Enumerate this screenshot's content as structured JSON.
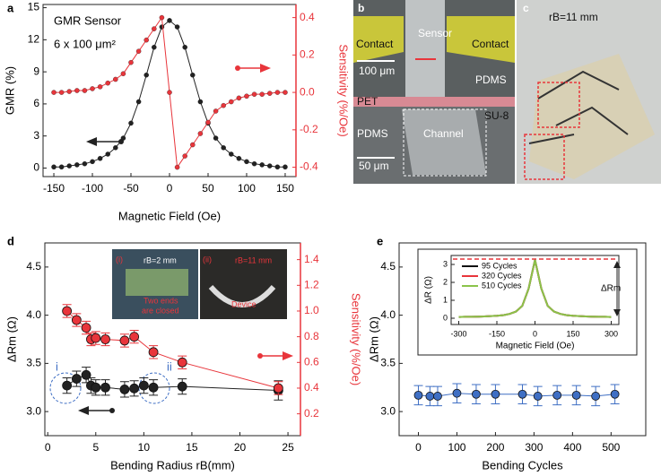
{
  "chart_data": [
    {
      "type": "scatter",
      "panel_label": "a",
      "xlabel": "Magnetic Field (Oe)",
      "ylabel": "GMR (%)",
      "y2label": "Sensitivity (%/Oe)",
      "x": [
        -150,
        -140,
        -130,
        -120,
        -110,
        -100,
        -90,
        -80,
        -70,
        -60,
        -50,
        -40,
        -30,
        -20,
        -10,
        0,
        10,
        20,
        30,
        40,
        50,
        60,
        70,
        80,
        90,
        100,
        110,
        120,
        130,
        140,
        150
      ],
      "series": [
        {
          "color": "#222222",
          "values": [
            0.1,
            0.1,
            0.2,
            0.3,
            0.4,
            0.6,
            0.9,
            1.3,
            1.9,
            2.8,
            4.2,
            6.2,
            8.7,
            11.3,
            13.2,
            13.8,
            13.2,
            11.3,
            8.7,
            6.2,
            4.2,
            2.8,
            1.9,
            1.3,
            0.9,
            0.6,
            0.4,
            0.3,
            0.2,
            0.1,
            0.1
          ]
        },
        {
          "color": "#e8353b",
          "axis": "y2",
          "values": [
            0,
            0,
            0.005,
            0.01,
            0.01,
            0.02,
            0.03,
            0.05,
            0.07,
            0.1,
            0.16,
            0.22,
            0.28,
            0.34,
            0.4,
            0,
            -0.4,
            -0.34,
            -0.28,
            -0.22,
            -0.16,
            -0.1,
            -0.07,
            -0.05,
            -0.03,
            -0.02,
            -0.01,
            -0.01,
            -0.005,
            0,
            0
          ]
        }
      ],
      "xlim": [
        -164,
        164
      ],
      "xticks": [
        -150,
        -100,
        -50,
        0,
        50,
        100,
        150
      ],
      "ylim": [
        -0.8,
        15.3
      ],
      "yticks": [
        0,
        3,
        6,
        9,
        12,
        15
      ],
      "y2lim": [
        -0.45,
        0.47
      ],
      "y2ticks": [
        -0.4,
        -0.2,
        {
          "value": 0,
          "label": "0.0"
        },
        0.2,
        0.4
      ],
      "annotations": [
        "GMR Sensor",
        "6 x 100 μm²"
      ]
    },
    {
      "type": "scatter",
      "panel_label": "d",
      "xlabel": "Bending Radius rB(mm)",
      "ylabel": "ΔRm (Ω)",
      "y2label": "Sensitivity (%/Oe)",
      "series": [
        {
          "color": "#222222",
          "x": [
            2,
            3,
            4,
            4.5,
            5,
            6,
            8,
            9,
            10,
            11,
            14,
            24
          ],
          "values": [
            3.27,
            3.34,
            3.38,
            3.27,
            3.25,
            3.25,
            3.23,
            3.24,
            3.27,
            3.25,
            3.26,
            3.22
          ],
          "errors": [
            0.08,
            0.08,
            0.08,
            0.08,
            0.08,
            0.08,
            0.08,
            0.08,
            0.08,
            0.08,
            0.08,
            0.1
          ]
        },
        {
          "color": "#e8353b",
          "axis": "y2",
          "x": [
            2,
            3,
            4,
            4.5,
            5,
            6,
            8,
            9,
            11,
            14,
            24
          ],
          "values": [
            1.0,
            0.93,
            0.87,
            0.78,
            0.79,
            0.78,
            0.77,
            0.8,
            0.68,
            0.6,
            0.4
          ],
          "errors": [
            0.05,
            0.05,
            0.05,
            0.05,
            0.05,
            0.05,
            0.05,
            0.05,
            0.05,
            0.05,
            0.05
          ]
        }
      ],
      "xlim": [
        -0.3,
        26.3
      ],
      "xticks": [
        0,
        5,
        10,
        15,
        20,
        25
      ],
      "ylim": [
        2.75,
        4.75
      ],
      "yticks": [
        {
          "value": 3,
          "label": "3.0"
        },
        3.5,
        {
          "value": 4,
          "label": "4.0"
        },
        4.5
      ],
      "y2lim": [
        0.03,
        1.53
      ],
      "y2ticks": [
        0.2,
        0.4,
        0.6,
        0.8,
        {
          "value": 1,
          "label": "1.0"
        },
        1.2,
        1.4
      ],
      "annotations": [
        "i",
        "ii",
        "(i)",
        "rB=2 mm",
        "Two ends",
        "are closed",
        "(ii)",
        "rB=11 mm",
        "Device"
      ]
    },
    {
      "type": "scatter",
      "panel_label": "e",
      "xlabel": "Bending Cycles",
      "ylabel": "ΔRm (Ω)",
      "series": [
        {
          "color": "#3f6fc4",
          "x": [
            0,
            30,
            50,
            100,
            150,
            200,
            270,
            310,
            360,
            410,
            460,
            510
          ],
          "values": [
            3.17,
            3.16,
            3.16,
            3.19,
            3.18,
            3.18,
            3.18,
            3.16,
            3.17,
            3.17,
            3.16,
            3.18
          ],
          "errors": [
            0.1,
            0.1,
            0.1,
            0.1,
            0.1,
            0.1,
            0.1,
            0.1,
            0.1,
            0.1,
            0.1,
            0.1
          ]
        }
      ],
      "xlim": [
        -50,
        590
      ],
      "xticks": [
        0,
        100,
        200,
        300,
        400,
        500
      ],
      "ylim": [
        2.75,
        4.75
      ],
      "yticks": [
        {
          "value": 3,
          "label": "3.0"
        },
        3.5,
        {
          "value": 4,
          "label": "4.0"
        },
        4.5
      ]
    },
    {
      "type": "line",
      "xlabel": "Magnetic Field (Oe)",
      "ylabel": "ΔR (Ω)",
      "x": [
        -300,
        -275,
        -250,
        -225,
        -200,
        -175,
        -150,
        -125,
        -100,
        -75,
        -50,
        -25,
        0,
        25,
        50,
        75,
        100,
        125,
        150,
        175,
        200,
        225,
        250,
        275,
        300
      ],
      "series": [
        {
          "name": "95 Cycles",
          "color": "#111111",
          "values": [
            0.07,
            0.08,
            0.08,
            0.09,
            0.1,
            0.12,
            0.14,
            0.17,
            0.24,
            0.37,
            0.69,
            1.65,
            3.25,
            1.65,
            0.69,
            0.37,
            0.24,
            0.17,
            0.14,
            0.12,
            0.1,
            0.09,
            0.08,
            0.08,
            0.07
          ]
        },
        {
          "name": "320 Cycles",
          "color": "#e8353b",
          "values": [
            0.07,
            0.08,
            0.08,
            0.09,
            0.1,
            0.12,
            0.14,
            0.17,
            0.24,
            0.37,
            0.69,
            1.65,
            3.25,
            1.65,
            0.69,
            0.37,
            0.24,
            0.17,
            0.14,
            0.12,
            0.1,
            0.09,
            0.08,
            0.08,
            0.07
          ]
        },
        {
          "name": "510 Cycles",
          "color": "#8bc34a",
          "values": [
            0.07,
            0.08,
            0.08,
            0.09,
            0.1,
            0.12,
            0.14,
            0.17,
            0.24,
            0.37,
            0.69,
            1.65,
            3.25,
            1.65,
            0.69,
            0.37,
            0.24,
            0.17,
            0.14,
            0.12,
            0.1,
            0.09,
            0.08,
            0.08,
            0.07
          ]
        }
      ],
      "xlim": [
        -330,
        330
      ],
      "xticks": [
        -300,
        -150,
        0,
        150,
        300
      ],
      "ylim": [
        -0.35,
        3.5
      ],
      "yticks": [
        0,
        1,
        2,
        3
      ],
      "annotations": [
        "ΔRm"
      ]
    }
  ],
  "photos": {
    "b": {
      "label": "b",
      "texts": [
        "Contact",
        "Sensor",
        "Contact",
        "100 μm",
        "PDMS",
        "PET",
        "SU-8",
        "PDMS",
        "Channel",
        "50 μm"
      ]
    },
    "c": {
      "label": "c",
      "texts": [
        "rB=11 mm"
      ]
    }
  }
}
